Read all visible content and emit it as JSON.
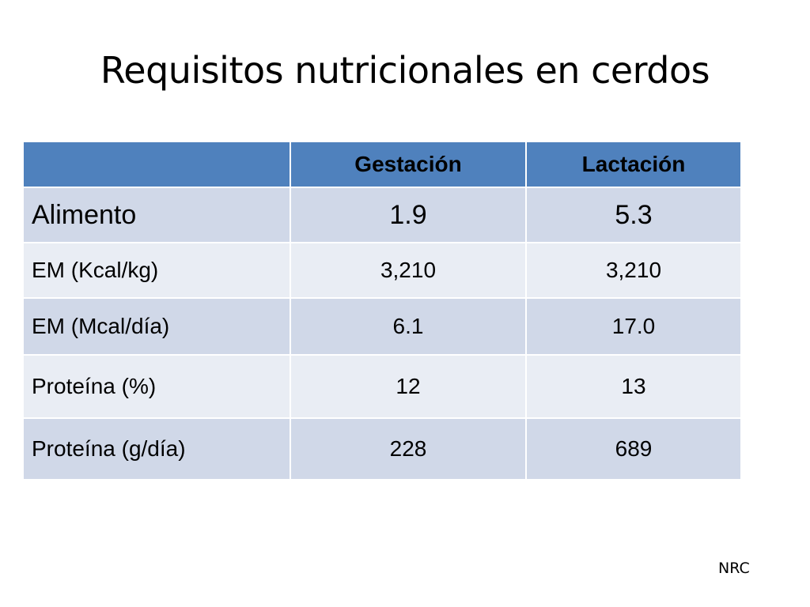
{
  "slide": {
    "title": "Requisitos nutricionales en cerdos",
    "source": "NRC"
  },
  "table": {
    "header": {
      "corner": "",
      "col_gestacion": "Gestación",
      "col_lactacion": "Lactación"
    },
    "rows": [
      {
        "label": "Alimento",
        "gestacion": "1.9",
        "lactacion": "5.3"
      },
      {
        "label": "EM (Kcal/kg)",
        "gestacion": "3,210",
        "lactacion": "3,210"
      },
      {
        "label": "EM (Mcal/día)",
        "gestacion": "6.1",
        "lactacion": "17.0"
      },
      {
        "label": "Proteína (%)",
        "gestacion": "12",
        "lactacion": "13"
      },
      {
        "label": "Proteína (g/día)",
        "gestacion": "228",
        "lactacion": "689"
      }
    ]
  },
  "colors": {
    "header_fill": "#4f81bd",
    "band_dark": "#d0d8e8",
    "band_light": "#e9edf4"
  }
}
